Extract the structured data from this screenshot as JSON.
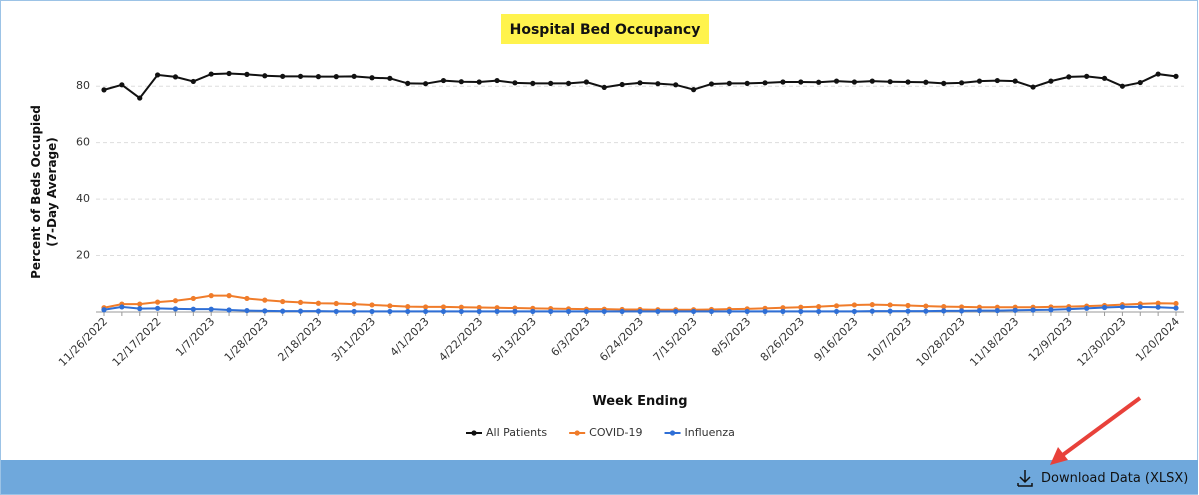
{
  "chart_data": {
    "type": "line",
    "title": "Hospital Bed Occupancy",
    "x_label": "Week Ending",
    "y_label": [
      "Percent of Beds Occupied",
      "(7-Day Average)"
    ],
    "categories": [
      "11/26/2022",
      null,
      null,
      "12/17/2022",
      null,
      null,
      "1/7/2023",
      null,
      null,
      "1/28/2023",
      null,
      null,
      "2/18/2023",
      null,
      null,
      "3/11/2023",
      null,
      null,
      "4/1/2023",
      null,
      null,
      "4/22/2023",
      null,
      null,
      "5/13/2023",
      null,
      null,
      "6/3/2023",
      null,
      null,
      "6/24/2023",
      null,
      null,
      "7/15/2023",
      null,
      null,
      "8/5/2023",
      null,
      null,
      "8/26/2023",
      null,
      null,
      "9/16/2023",
      null,
      null,
      "10/7/2023",
      null,
      null,
      "10/28/2023",
      null,
      null,
      "11/18/2023",
      null,
      null,
      "12/9/2023",
      null,
      null,
      "12/30/2023",
      null,
      null,
      "1/20/2024"
    ],
    "series": [
      {
        "name": "All Patients",
        "color": "#111111",
        "values": [
          78.7,
          80.5,
          75.8,
          84,
          83.3,
          81.7,
          84.3,
          84.5,
          84.2,
          83.7,
          83.5,
          83.5,
          83.4,
          83.4,
          83.5,
          83,
          82.8,
          81,
          80.9,
          82,
          81.6,
          81.5,
          82,
          81.2,
          81,
          81,
          81,
          81.5,
          79.6,
          80.6,
          81.2,
          80.9,
          80.5,
          78.8,
          80.8,
          81,
          81,
          81.2,
          81.5,
          81.5,
          81.4,
          81.8,
          81.5,
          81.8,
          81.6,
          81.5,
          81.4,
          81,
          81.2,
          81.8,
          82,
          81.8,
          79.7,
          81.8,
          83.3,
          83.5,
          82.8,
          80,
          81.3,
          84.3,
          83.5
        ]
      },
      {
        "name": "COVID-19",
        "color": "#f07c2a",
        "values": [
          1.5,
          2.8,
          2.8,
          3.5,
          4,
          4.8,
          5.8,
          5.8,
          4.8,
          4.2,
          3.7,
          3.4,
          3.1,
          3,
          2.8,
          2.5,
          2.2,
          1.9,
          1.8,
          1.8,
          1.7,
          1.6,
          1.5,
          1.4,
          1.3,
          1.2,
          1.1,
          1.0,
          1.0,
          0.9,
          0.9,
          0.8,
          0.8,
          0.8,
          0.9,
          1.0,
          1.1,
          1.3,
          1.5,
          1.7,
          1.9,
          2.2,
          2.5,
          2.6,
          2.5,
          2.3,
          2.1,
          1.9,
          1.8,
          1.7,
          1.7,
          1.7,
          1.7,
          1.8,
          1.9,
          2.1,
          2.3,
          2.6,
          2.9,
          3.1,
          3.0
        ]
      },
      {
        "name": "Influenza",
        "color": "#2f6fd6",
        "values": [
          0.8,
          1.8,
          1.2,
          1.3,
          1.1,
          1.0,
          1.0,
          0.7,
          0.5,
          0.4,
          0.3,
          0.3,
          0.3,
          0.2,
          0.2,
          0.2,
          0.2,
          0.2,
          0.2,
          0.2,
          0.2,
          0.2,
          0.2,
          0.2,
          0.2,
          0.2,
          0.2,
          0.2,
          0.2,
          0.2,
          0.2,
          0.2,
          0.2,
          0.2,
          0.2,
          0.2,
          0.2,
          0.2,
          0.2,
          0.2,
          0.2,
          0.2,
          0.2,
          0.3,
          0.3,
          0.3,
          0.3,
          0.4,
          0.4,
          0.5,
          0.5,
          0.6,
          0.7,
          0.8,
          1.0,
          1.3,
          1.6,
          1.8,
          1.8,
          1.7,
          1.4
        ]
      }
    ],
    "ylim": [
      0,
      90
    ],
    "yticks": [
      20,
      40,
      60,
      80
    ],
    "grid": true,
    "legend": "bottom",
    "download_label": "Download Data (XLSX)"
  }
}
